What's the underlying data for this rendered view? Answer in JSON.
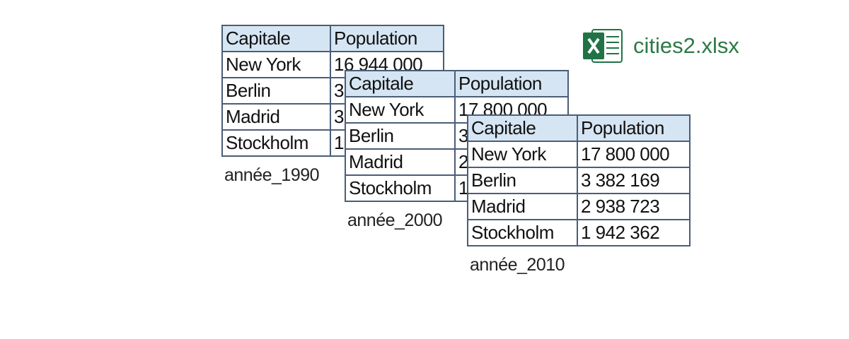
{
  "file": {
    "name": "cities2.xlsx"
  },
  "tables": [
    {
      "caption": "année_1990",
      "header": [
        "Capitale",
        "Population"
      ],
      "rows": [
        [
          "New York",
          "16 944 000"
        ],
        [
          "Berlin",
          "3"
        ],
        [
          "Madrid",
          "3"
        ],
        [
          "Stockholm",
          "1"
        ]
      ]
    },
    {
      "caption": "année_2000",
      "header": [
        "Capitale",
        "Population"
      ],
      "rows": [
        [
          "New York",
          "17 800 000"
        ],
        [
          "Berlin",
          "3"
        ],
        [
          "Madrid",
          "2"
        ],
        [
          "Stockholm",
          "1"
        ]
      ]
    },
    {
      "caption": "année_2010",
      "header": [
        "Capitale",
        "Population"
      ],
      "rows": [
        [
          "New York",
          "17 800 000"
        ],
        [
          "Berlin",
          "3 382 169"
        ],
        [
          "Madrid",
          "2 938 723"
        ],
        [
          "Stockholm",
          "1 942 362"
        ]
      ]
    }
  ]
}
